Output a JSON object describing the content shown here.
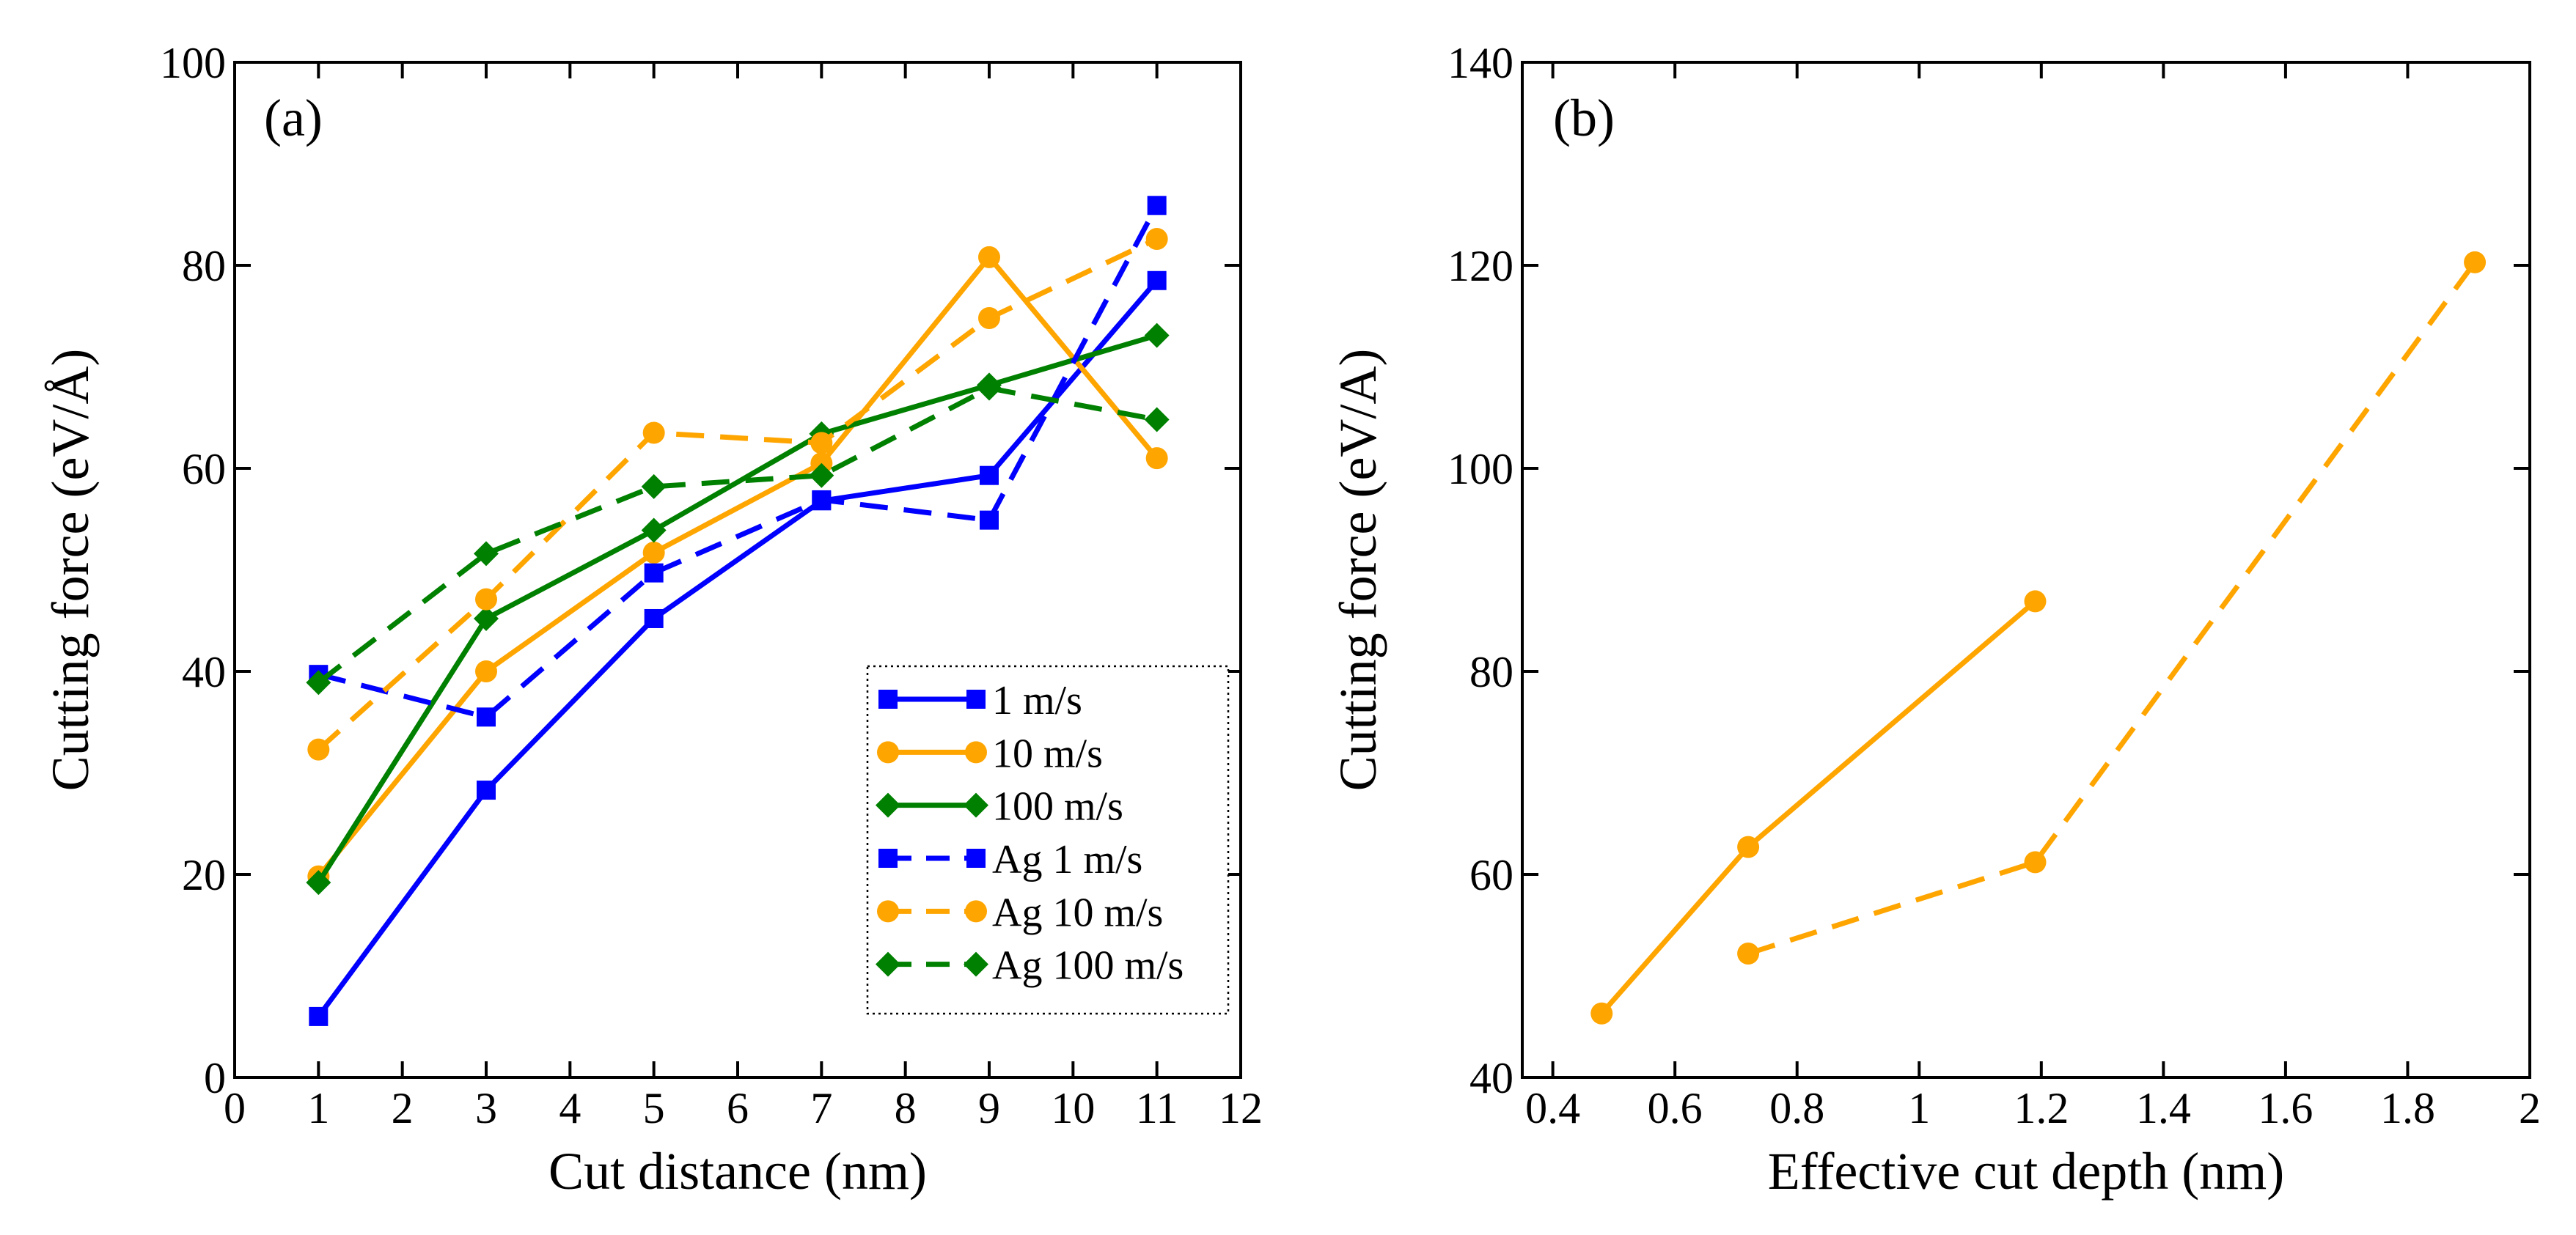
{
  "colors": {
    "blue": "#0000ff",
    "orange": "#ffa500",
    "green": "#008000"
  },
  "chart_data": [
    {
      "type": "line",
      "panel_label": "(a)",
      "xlabel": "Cut distance (nm)",
      "ylabel": "Cutting force (eV/Å)",
      "xlim": [
        0,
        12
      ],
      "ylim": [
        0,
        100
      ],
      "xticks": [
        0,
        1,
        2,
        3,
        4,
        5,
        6,
        7,
        8,
        9,
        10,
        11,
        12
      ],
      "yticks": [
        0,
        20,
        40,
        60,
        80,
        100
      ],
      "xtick_labels": [
        "0",
        "1",
        "2",
        "3",
        "4",
        "5",
        "6",
        "7",
        "8",
        "9",
        "10",
        "11",
        "12"
      ],
      "ytick_labels": [
        "0",
        "20",
        "40",
        "60",
        "80",
        "100"
      ],
      "legend_position": "bottom-right",
      "series": [
        {
          "name": "1 m/s",
          "color": "blue",
          "marker": "square",
          "dashed": false,
          "x": [
            1,
            3,
            5,
            7,
            9,
            11
          ],
          "y": [
            6,
            28.3,
            45.2,
            56.8,
            59.3,
            78.5
          ]
        },
        {
          "name": "10 m/s",
          "color": "orange",
          "marker": "circle",
          "dashed": false,
          "x": [
            1,
            3,
            5,
            7,
            9,
            11
          ],
          "y": [
            19.8,
            40,
            51.7,
            60.5,
            80.8,
            61
          ]
        },
        {
          "name": "100 m/s",
          "color": "green",
          "marker": "diamond",
          "dashed": false,
          "x": [
            1,
            3,
            5,
            7,
            9,
            11
          ],
          "y": [
            19.2,
            45.2,
            53.9,
            63.4,
            68.2,
            73.1
          ]
        },
        {
          "name": "Ag 1 m/s",
          "color": "blue",
          "marker": "square",
          "dashed": true,
          "x": [
            1,
            3,
            5,
            7,
            9,
            11
          ],
          "y": [
            39.7,
            35.5,
            49.7,
            56.9,
            54.9,
            85.9
          ]
        },
        {
          "name": "Ag 10 m/s",
          "color": "orange",
          "marker": "circle",
          "dashed": true,
          "x": [
            1,
            3,
            5,
            7,
            9,
            11
          ],
          "y": [
            32.3,
            47.1,
            63.5,
            62.5,
            74.8,
            82.6
          ]
        },
        {
          "name": "Ag 100 m/s",
          "color": "green",
          "marker": "diamond",
          "dashed": true,
          "x": [
            1,
            3,
            5,
            7,
            9,
            11
          ],
          "y": [
            38.9,
            51.6,
            58.2,
            59.3,
            67.9,
            64.8
          ]
        }
      ]
    },
    {
      "type": "line",
      "panel_label": "(b)",
      "xlabel": "Effective cut depth (nm)",
      "ylabel": "Cutting force (eV/A)",
      "xlim": [
        0.35,
        2
      ],
      "ylim": [
        40,
        140
      ],
      "xticks": [
        0.4,
        0.6,
        0.8,
        1,
        1.2,
        1.4,
        1.6,
        1.8,
        2
      ],
      "yticks": [
        40,
        60,
        80,
        100,
        120,
        140
      ],
      "xtick_labels": [
        "0.4",
        "0.6",
        "0.8",
        "1",
        "1.2",
        "1.4",
        "1.6",
        "1.8",
        "2"
      ],
      "ytick_labels": [
        "40",
        "60",
        "80",
        "100",
        "120",
        "140"
      ],
      "series": [
        {
          "name": "solid",
          "color": "orange",
          "marker": "circle",
          "dashed": false,
          "x": [
            0.48,
            0.72,
            1.19
          ],
          "y": [
            46.3,
            62.7,
            86.9
          ]
        },
        {
          "name": "dashed",
          "color": "orange",
          "marker": "circle",
          "dashed": true,
          "x": [
            0.72,
            1.19,
            1.91
          ],
          "y": [
            52.2,
            61.2,
            120.3
          ]
        }
      ]
    }
  ]
}
